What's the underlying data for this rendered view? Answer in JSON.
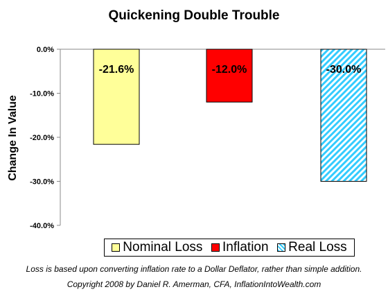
{
  "chart_data": {
    "type": "bar",
    "title": "Quickening Double Trouble",
    "ylabel": "Change In Value",
    "xlabel": "",
    "ylim": [
      -40,
      0
    ],
    "yticks": [
      "0.0%",
      "-10.0%",
      "-20.0%",
      "-30.0%",
      "-40.0%"
    ],
    "grid": false,
    "legend_position": "bottom",
    "series": [
      {
        "name": "Nominal Loss",
        "value": -21.6,
        "label": "-21.6%",
        "color": "#ffff99",
        "pattern": "solid"
      },
      {
        "name": "Inflation",
        "value": -12.0,
        "label": "-12.0%",
        "color": "#ff0000",
        "pattern": "solid"
      },
      {
        "name": "Real Loss",
        "value": -30.0,
        "label": "-30.0%",
        "color": "#33ccff",
        "pattern": "diagonal-stripes"
      }
    ]
  },
  "footnotes": {
    "line1": "Loss is based upon converting inflation rate to a Dollar Deflator, rather than simple addition.",
    "line2": "Copyright 2008 by Daniel R. Amerman, CFA, InflationIntoWealth.com"
  }
}
